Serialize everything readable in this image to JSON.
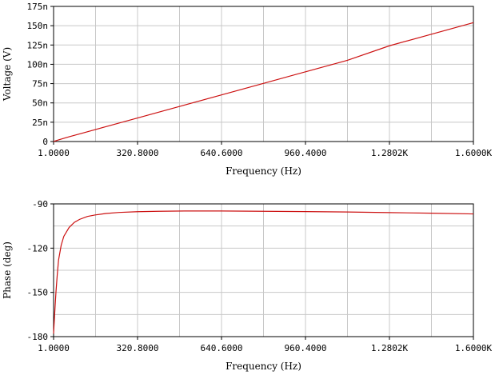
{
  "colors": {
    "background": "#ffffff",
    "grid": "#c8c8c8",
    "frame": "#000000",
    "trace": "#cc1111"
  },
  "chart_data": [
    {
      "type": "line",
      "title": "",
      "xlabel": "Frequency (Hz)",
      "ylabel": "Voltage (V)",
      "xlim": [
        1.0,
        1600.0
      ],
      "ylim": [
        0,
        175
      ],
      "y_unit": "n",
      "grid": true,
      "x_tick_values": [
        1.0,
        320.8,
        640.6,
        960.4,
        1280.2,
        1600.0
      ],
      "x_tick_labels": [
        "1.0000",
        "320.8000",
        "640.6000",
        "960.4000",
        "1.2802K",
        "1.6000K"
      ],
      "y_tick_values": [
        0,
        25,
        50,
        75,
        100,
        125,
        150,
        175
      ],
      "y_tick_labels": [
        "0",
        "25n",
        "50n",
        "75n",
        "100n",
        "125n",
        "150n",
        "175n"
      ],
      "series": [
        {
          "x": [
            1,
            20,
            60,
            120,
            200,
            320.8,
            480,
            640.6,
            800,
            960.4,
            1120,
            1280.2,
            1440,
            1600
          ],
          "y": [
            0.1,
            2.1,
            6.1,
            11.7,
            19.2,
            30.5,
            45.4,
            60.4,
            75.3,
            90.3,
            105.2,
            124.0,
            139.0,
            154.0
          ]
        }
      ]
    },
    {
      "type": "line",
      "title": "",
      "xlabel": "Frequency (Hz)",
      "ylabel": "Phase (deg)",
      "xlim": [
        1.0,
        1600.0
      ],
      "ylim": [
        -180,
        -90
      ],
      "grid": true,
      "x_tick_values": [
        1.0,
        320.8,
        640.6,
        960.4,
        1280.2,
        1600.0
      ],
      "x_tick_labels": [
        "1.0000",
        "320.8000",
        "640.6000",
        "960.4000",
        "1.2802K",
        "1.6000K"
      ],
      "y_tick_values": [
        -180,
        -150,
        -120,
        -90
      ],
      "y_tick_labels": [
        "-180",
        "-150",
        "-120",
        "-90"
      ],
      "series": [
        {
          "x": [
            1,
            5,
            10,
            15,
            20,
            30,
            40,
            60,
            80,
            100,
            130,
            160,
            200,
            250,
            320.8,
            400,
            500,
            640.6,
            800,
            960.4,
            1120,
            1280.2,
            1440,
            1600
          ],
          "y": [
            -178,
            -165,
            -150,
            -138,
            -128,
            -118,
            -112,
            -106,
            -102.5,
            -100.5,
            -98.5,
            -97.5,
            -96.5,
            -95.8,
            -95.3,
            -95.0,
            -94.8,
            -94.8,
            -95.0,
            -95.2,
            -95.5,
            -95.9,
            -96.3,
            -96.8
          ]
        }
      ]
    }
  ]
}
